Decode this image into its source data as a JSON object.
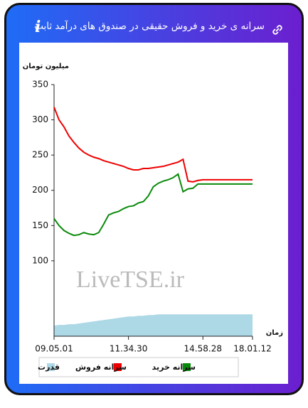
{
  "chart_data": {
    "type": "line",
    "title": "سرانه ی خرید و فروش حقیقی در صندوق های درآمد ثابت",
    "y_label": "میلیون تومان",
    "x_label": "زمان",
    "watermark": "LiveTSE.ir",
    "categories": [
      "09.05.01",
      null,
      null,
      null,
      null,
      null,
      null,
      null,
      null,
      null,
      null,
      null,
      null,
      null,
      null,
      "11.34.30",
      null,
      null,
      null,
      null,
      null,
      null,
      null,
      null,
      null,
      null,
      null,
      null,
      null,
      null,
      "14.58.28",
      null,
      null,
      null,
      null,
      null,
      null,
      null,
      null,
      null,
      "18.01.12"
    ],
    "ylim": [
      -7,
      350
    ],
    "yticks": [
      100,
      150,
      200,
      250,
      300,
      350
    ],
    "grid": false,
    "series": [
      {
        "name": "سرانه خرید",
        "color": "#0a8a0a",
        "values": [
          160,
          150,
          143,
          139,
          136,
          137,
          140,
          138,
          137,
          140,
          152,
          165,
          168,
          170,
          174,
          177,
          178,
          182,
          184,
          192,
          205,
          210,
          213,
          215,
          218,
          223,
          198,
          202,
          203,
          209,
          209,
          209,
          209,
          209,
          209,
          209,
          209,
          209,
          209,
          209,
          209
        ]
      },
      {
        "name": "سرانه فروش",
        "color": "#ee0000",
        "values": [
          318,
          300,
          290,
          277,
          268,
          260,
          254,
          250,
          247,
          245,
          242,
          240,
          238,
          236,
          234,
          231,
          229,
          229,
          231,
          231,
          232,
          233,
          234,
          236,
          238,
          240,
          244,
          213,
          212,
          214,
          215,
          215,
          215,
          215,
          215,
          215,
          215,
          215,
          215,
          215,
          215
        ]
      },
      {
        "name": "قدرت",
        "color": "#add8e6",
        "style": "area",
        "values": [
          8,
          9,
          9,
          10,
          10,
          11,
          12,
          13,
          14,
          15,
          16,
          17,
          18,
          19,
          20,
          21,
          21,
          22,
          22,
          23,
          23,
          24,
          24,
          24,
          24,
          24,
          24,
          24,
          24,
          24,
          24,
          24,
          24,
          24,
          24,
          24,
          24,
          24,
          24,
          24,
          24
        ]
      }
    ]
  }
}
